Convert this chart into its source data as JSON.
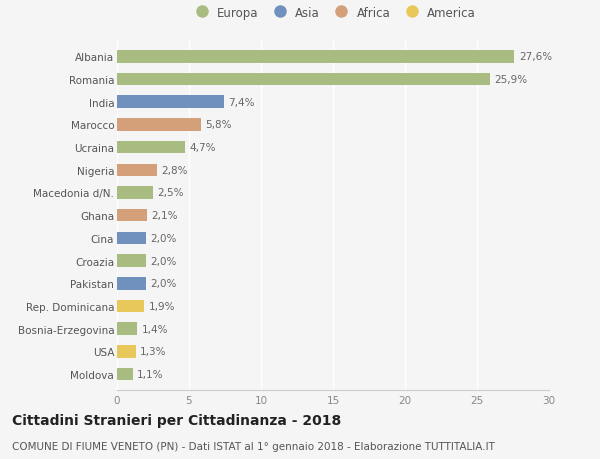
{
  "categories": [
    "Albania",
    "Romania",
    "India",
    "Marocco",
    "Ucraina",
    "Nigeria",
    "Macedonia d/N.",
    "Ghana",
    "Cina",
    "Croazia",
    "Pakistan",
    "Rep. Dominicana",
    "Bosnia-Erzegovina",
    "USA",
    "Moldova"
  ],
  "values": [
    27.6,
    25.9,
    7.4,
    5.8,
    4.7,
    2.8,
    2.5,
    2.1,
    2.0,
    2.0,
    2.0,
    1.9,
    1.4,
    1.3,
    1.1
  ],
  "labels": [
    "27,6%",
    "25,9%",
    "7,4%",
    "5,8%",
    "4,7%",
    "2,8%",
    "2,5%",
    "2,1%",
    "2,0%",
    "2,0%",
    "2,0%",
    "1,9%",
    "1,4%",
    "1,3%",
    "1,1%"
  ],
  "continents": [
    "Europa",
    "Europa",
    "Asia",
    "Africa",
    "Europa",
    "Africa",
    "Europa",
    "Africa",
    "Asia",
    "Europa",
    "Asia",
    "America",
    "Europa",
    "America",
    "Europa"
  ],
  "continent_colors": {
    "Europa": "#a8bc82",
    "Asia": "#7090be",
    "Africa": "#d4a07a",
    "America": "#e8c85a"
  },
  "legend_order": [
    "Europa",
    "Asia",
    "Africa",
    "America"
  ],
  "xlim": [
    0,
    30
  ],
  "xticks": [
    0,
    5,
    10,
    15,
    20,
    25,
    30
  ],
  "title": "Cittadini Stranieri per Cittadinanza - 2018",
  "subtitle": "COMUNE DI FIUME VENETO (PN) - Dati ISTAT al 1° gennaio 2018 - Elaborazione TUTTITALIA.IT",
  "background_color": "#f5f5f5",
  "bar_height": 0.55,
  "title_fontsize": 10,
  "subtitle_fontsize": 7.5,
  "label_fontsize": 7.5,
  "tick_fontsize": 7.5,
  "legend_fontsize": 8.5
}
